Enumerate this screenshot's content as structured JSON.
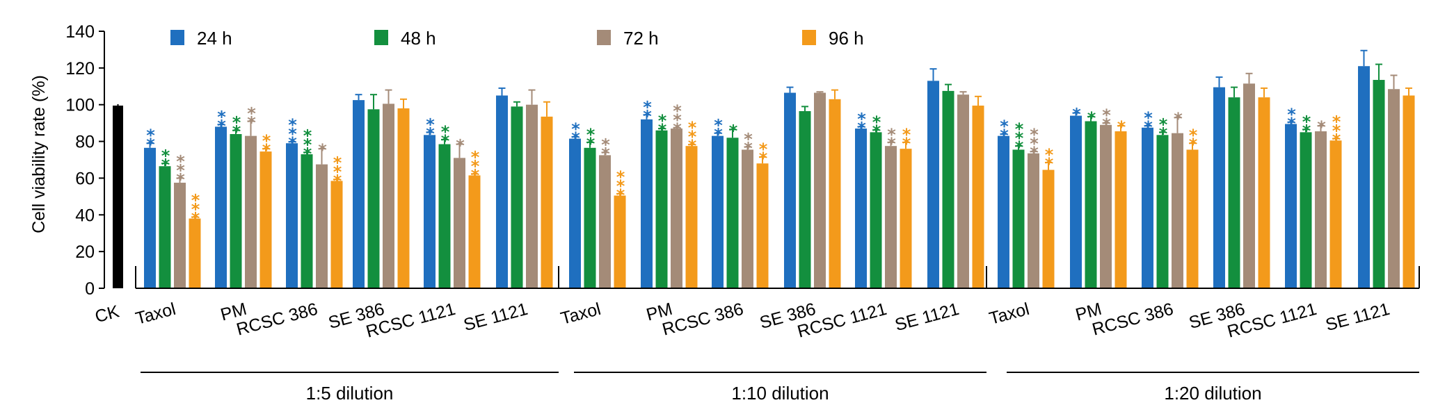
{
  "chart_data": {
    "type": "bar",
    "title": "",
    "xlabel": "",
    "ylabel": "Cell viability rate (%)",
    "ylim": [
      0,
      140
    ],
    "yticks": [
      "0",
      "20",
      "40",
      "60",
      "80",
      "100",
      "120",
      "140"
    ],
    "grid": false,
    "legend_position": "top",
    "control": {
      "label": "CK",
      "value": 99.5,
      "error": 0.8,
      "color": "#000000"
    },
    "series": [
      {
        "name": "24 h",
        "color": "#1f6fbf"
      },
      {
        "name": "48 h",
        "color": "#138f3e"
      },
      {
        "name": "72 h",
        "color": "#a48b78"
      },
      {
        "name": "96 h",
        "color": "#f39a1b"
      }
    ],
    "groups": [
      {
        "label": "1:5 dilution",
        "categories": [
          {
            "label": "Taxol",
            "values": [
              76.5,
              66.5,
              57.5,
              38
            ],
            "errors": [
              2.5,
              1.5,
              2.5,
              0.8
            ],
            "stars": [
              "**",
              "**",
              "***",
              "***"
            ]
          },
          {
            "label": "PM",
            "values": [
              88,
              84,
              83,
              74.5
            ],
            "errors": [
              1.2,
              2.0,
              8.0,
              1.5
            ],
            "stars": [
              "**",
              "**",
              "**",
              "**"
            ]
          },
          {
            "label": "RCSC 386",
            "values": [
              79,
              73,
              67.5,
              58.5
            ],
            "errors": [
              0.8,
              1.0,
              8.5,
              0.8
            ],
            "stars": [
              "***",
              "***",
              "*",
              "***"
            ]
          },
          {
            "label": "SE 386",
            "values": [
              102.5,
              97.5,
              100.5,
              98
            ],
            "errors": [
              3.0,
              8.0,
              7.5,
              5.0
            ],
            "stars": [
              "",
              "",
              "",
              ""
            ]
          },
          {
            "label": "RCSC 1121",
            "values": [
              83.5,
              78.5,
              71,
              61.5
            ],
            "errors": [
              1.5,
              2.5,
              7.5,
              0.8
            ],
            "stars": [
              "**",
              "**",
              "*",
              "***"
            ]
          },
          {
            "label": "SE 1121",
            "values": [
              105,
              99,
              100,
              93.5
            ],
            "errors": [
              4.0,
              2.5,
              8.0,
              8.0
            ],
            "stars": [
              "",
              "",
              "",
              ""
            ]
          }
        ]
      },
      {
        "label": "1:10 dilution",
        "categories": [
          {
            "label": "Taxol",
            "values": [
              81.5,
              76.5,
              72.5,
              50.5
            ],
            "errors": [
              1.0,
              3.0,
              1.5,
              1.0
            ],
            "stars": [
              "**",
              "**",
              "**",
              "***"
            ]
          },
          {
            "label": "PM",
            "values": [
              92,
              86,
              87,
              77.5
            ],
            "errors": [
              2.5,
              1.0,
              0.5,
              0.8
            ],
            "stars": [
              "**",
              "**",
              "***",
              "***"
            ]
          },
          {
            "label": "RCSC 386",
            "values": [
              83,
              82,
              75.5,
              68
            ],
            "errors": [
              1.5,
              4.5,
              1.5,
              3.5
            ],
            "stars": [
              "**",
              "*",
              "**",
              "**"
            ]
          },
          {
            "label": "SE 386",
            "values": [
              106.5,
              96.5,
              106.5,
              103
            ],
            "errors": [
              3.0,
              2.5,
              0.5,
              5.0
            ],
            "stars": [
              "",
              "",
              "",
              ""
            ]
          },
          {
            "label": "RCSC 1121",
            "values": [
              87,
              85,
              77.5,
              76
            ],
            "errors": [
              1.0,
              1.2,
              2.0,
              3.5
            ],
            "stars": [
              "**",
              "**",
              "**",
              "**"
            ]
          },
          {
            "label": "SE 1121",
            "values": [
              113,
              107.5,
              105.5,
              99.5
            ],
            "errors": [
              6.5,
              3.5,
              1.5,
              5.0
            ],
            "stars": [
              "",
              "",
              "",
              ""
            ]
          }
        ]
      },
      {
        "label": "1:20 dilution",
        "categories": [
          {
            "label": "Taxol",
            "values": [
              83,
              75.5,
              73.5,
              64.5
            ],
            "errors": [
              1.0,
              2.0,
              1.0,
              4.0
            ],
            "stars": [
              "**",
              "***",
              "***",
              "**"
            ]
          },
          {
            "label": "PM",
            "values": [
              94,
              91,
              89,
              85.5
            ],
            "errors": [
              1.5,
              2.5,
              1.0,
              3.0
            ],
            "stars": [
              "*",
              "*",
              "**",
              "*"
            ]
          },
          {
            "label": "RCSC 386",
            "values": [
              87.5,
              83.5,
              84.5,
              75.5
            ],
            "errors": [
              1.0,
              1.5,
              8.5,
              3.5
            ],
            "stars": [
              "**",
              "**",
              "*",
              "**"
            ]
          },
          {
            "label": "SE 386",
            "values": [
              109.5,
              104,
              111.5,
              104
            ],
            "errors": [
              5.5,
              5.5,
              5.5,
              5.0
            ],
            "stars": [
              "",
              "",
              "",
              ""
            ]
          },
          {
            "label": "RCSC 1121",
            "values": [
              89.5,
              85,
              85.5,
              80.5
            ],
            "errors": [
              1.0,
              1.5,
              3.0,
              1.0
            ],
            "stars": [
              "**",
              "**",
              "*",
              "***"
            ]
          },
          {
            "label": "SE 1121",
            "values": [
              121,
              113.5,
              108.5,
              105
            ],
            "errors": [
              8.5,
              8.5,
              7.5,
              4.0
            ],
            "stars": [
              "",
              "",
              "",
              ""
            ]
          }
        ]
      }
    ]
  }
}
